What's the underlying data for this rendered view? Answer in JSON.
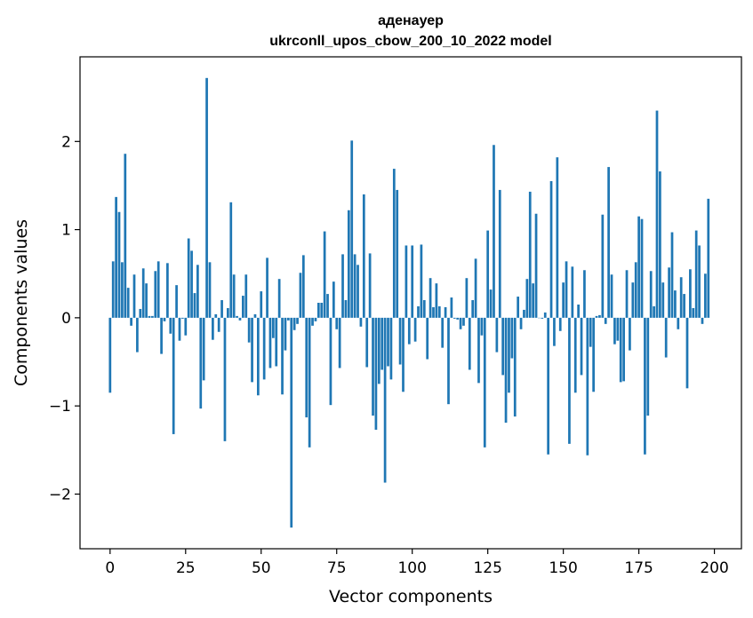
{
  "chart_data": {
    "type": "bar",
    "title": "аденауер",
    "subtitle": "ukrconll_upos_cbow_200_10_2022 model",
    "xlabel": "Vector components",
    "ylabel": "Components values",
    "xlim": [
      -9.95,
      208.95
    ],
    "ylim": [
      -2.62,
      2.96
    ],
    "xticks": [
      0,
      25,
      50,
      75,
      100,
      125,
      150,
      175,
      200
    ],
    "yticks": [
      -2,
      -1,
      0,
      1,
      2
    ],
    "ytick_labels": [
      "−2",
      "−1",
      "0",
      "1",
      "2"
    ],
    "bar_color": "#1f77b4",
    "values": [
      -0.85,
      0.64,
      1.37,
      1.2,
      0.63,
      1.86,
      0.34,
      -0.09,
      0.49,
      -0.39,
      0.1,
      0.56,
      0.39,
      0.02,
      0.02,
      0.53,
      0.64,
      -0.41,
      -0.04,
      0.62,
      -0.18,
      -1.32,
      0.37,
      -0.26,
      -0.01,
      -0.2,
      0.9,
      0.76,
      0.28,
      0.6,
      -1.03,
      -0.71,
      2.72,
      0.63,
      -0.25,
      0.04,
      -0.16,
      0.2,
      -1.4,
      0.11,
      1.31,
      0.49,
      0.02,
      -0.03,
      0.25,
      0.49,
      -0.28,
      -0.73,
      0.04,
      -0.88,
      0.3,
      -0.7,
      0.68,
      -0.57,
      -0.23,
      -0.55,
      0.44,
      -0.87,
      -0.37,
      -0.03,
      -2.38,
      -0.14,
      -0.07,
      0.51,
      0.71,
      -1.13,
      -1.47,
      -0.09,
      -0.04,
      0.17,
      0.17,
      0.98,
      0.27,
      -0.99,
      0.41,
      -0.13,
      -0.57,
      0.72,
      0.2,
      1.22,
      2.01,
      0.72,
      0.6,
      -0.1,
      1.4,
      -0.56,
      0.73,
      -1.11,
      -1.27,
      -0.75,
      -0.59,
      -1.87,
      -0.55,
      -0.7,
      1.69,
      1.45,
      -0.53,
      -0.84,
      0.82,
      -0.3,
      0.82,
      -0.27,
      0.13,
      0.83,
      0.2,
      -0.47,
      0.45,
      0.12,
      0.39,
      0.13,
      -0.34,
      0.12,
      -0.98,
      0.23,
      -0.01,
      -0.02,
      -0.13,
      -0.09,
      0.45,
      -0.59,
      0.2,
      0.67,
      -0.74,
      -0.2,
      -1.47,
      0.99,
      0.32,
      1.96,
      -0.39,
      1.45,
      -0.65,
      -1.19,
      -0.85,
      -0.46,
      -1.12,
      0.24,
      -0.13,
      0.09,
      0.44,
      1.43,
      0.39,
      1.18,
      0.0,
      -0.01,
      0.06,
      -1.55,
      1.55,
      -0.32,
      1.82,
      -0.15,
      0.4,
      0.64,
      -1.43,
      0.58,
      -0.85,
      0.15,
      -0.65,
      0.54,
      -1.56,
      -0.33,
      -0.84,
      0.02,
      0.03,
      1.17,
      -0.07,
      1.71,
      0.49,
      -0.3,
      -0.26,
      -0.73,
      -0.72,
      0.54,
      -0.37,
      0.4,
      0.63,
      1.15,
      1.12,
      -1.55,
      -1.11,
      0.53,
      0.13,
      2.35,
      1.66,
      0.4,
      -0.45,
      0.57,
      0.97,
      0.31,
      -0.13,
      0.46,
      0.27,
      -0.8,
      0.55,
      0.11,
      0.99,
      0.82,
      -0.07,
      0.5,
      1.35
    ]
  }
}
